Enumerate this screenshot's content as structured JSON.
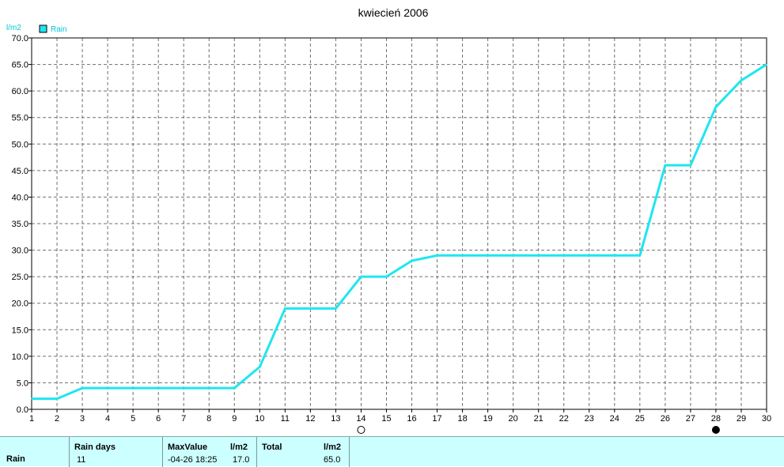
{
  "chart_data": {
    "type": "line",
    "title": "kwiecień 2006",
    "ylabel": "l/m2",
    "ylim": [
      0,
      70
    ],
    "yticks": [
      "0.0",
      "5.0",
      "10.0",
      "15.0",
      "20.0",
      "25.0",
      "30.0",
      "35.0",
      "40.0",
      "45.0",
      "50.0",
      "55.0",
      "60.0",
      "65.0",
      "70.0"
    ],
    "x": [
      1,
      2,
      3,
      4,
      5,
      6,
      7,
      8,
      9,
      10,
      11,
      12,
      13,
      14,
      15,
      16,
      17,
      18,
      19,
      20,
      21,
      22,
      23,
      24,
      25,
      26,
      27,
      28,
      29,
      30
    ],
    "xticks": [
      "1",
      "2",
      "3",
      "4",
      "5",
      "6",
      "7",
      "8",
      "9",
      "10",
      "11",
      "12",
      "13",
      "14",
      "15",
      "16",
      "17",
      "18",
      "19",
      "20",
      "21",
      "22",
      "23",
      "24",
      "25",
      "26",
      "27",
      "28",
      "29",
      "30"
    ],
    "grid": true,
    "legend_position": "top-left",
    "series": [
      {
        "name": "Rain",
        "color": "#1ee6f0",
        "values": [
          2,
          2,
          4,
          4,
          4,
          4,
          4,
          4,
          4,
          8,
          19,
          19,
          19,
          25,
          25,
          28,
          29,
          29,
          29,
          29,
          29,
          29,
          29,
          29,
          29,
          46,
          46,
          57,
          62,
          65
        ]
      }
    ],
    "markers": [
      {
        "day": 14,
        "symbol": "open-circle-icon"
      },
      {
        "day": 28,
        "symbol": "filled-circle-icon"
      }
    ]
  },
  "stats": {
    "row_label": "Rain",
    "rain_days_label": "Rain days",
    "rain_days_value": "11",
    "max_label": "MaxValue",
    "max_unit": "l/m2",
    "max_date": "-04-26  18:25",
    "max_value": "17.0",
    "total_label": "Total",
    "total_unit": "l/m2",
    "total_value": "65.0"
  }
}
